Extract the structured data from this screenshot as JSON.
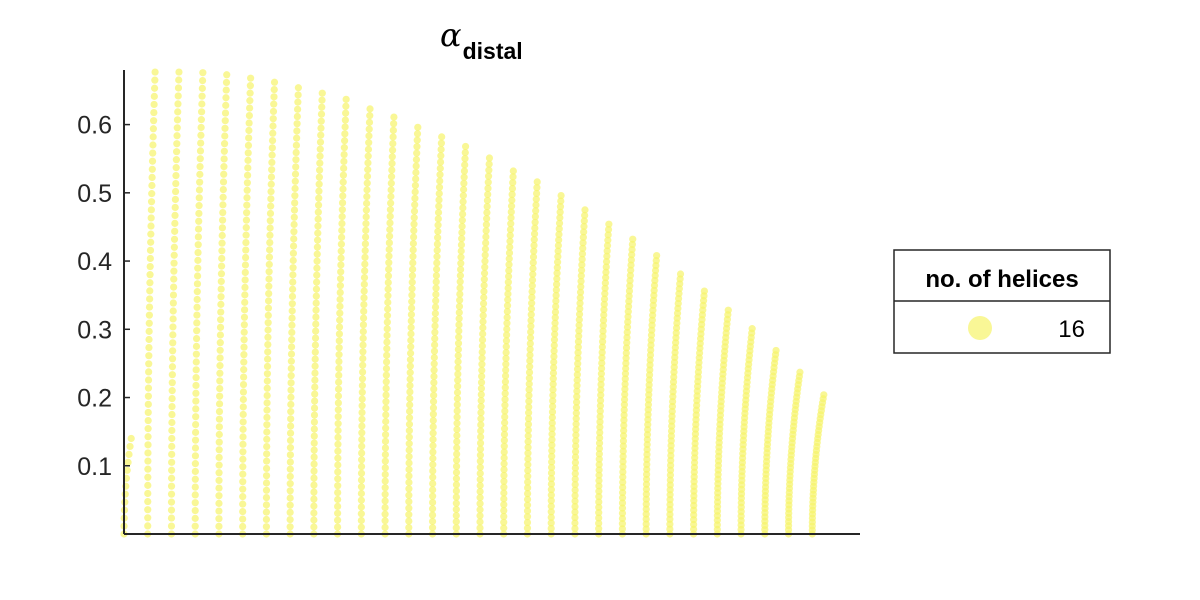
{
  "chart_data": {
    "type": "scatter",
    "title": "α",
    "title_subscript": "distal",
    "xlabel": "",
    "ylabel": "",
    "ylim": [
      0,
      0.68
    ],
    "xlim": [
      0,
      0.3
    ],
    "yticks": [
      "0.1",
      "0.2",
      "0.3",
      "0.4",
      "0.5",
      "0.6"
    ],
    "ytick_values": [
      0.1,
      0.2,
      0.3,
      0.4,
      0.5,
      0.6
    ],
    "grid": false,
    "x_axis_visible_ticks": false,
    "marker_color": "#f7f46a",
    "marker_opacity": 0.7,
    "legend": {
      "title": "no. of helices",
      "entries": [
        {
          "label": "16",
          "color": "#f7f46a"
        }
      ],
      "placement": "right"
    },
    "columns": [
      {
        "x": 0.0,
        "ymax": 0.14
      },
      {
        "x": 0.01,
        "ymax": 0.677
      },
      {
        "x": 0.02,
        "ymax": 0.677
      },
      {
        "x": 0.03,
        "ymax": 0.676
      },
      {
        "x": 0.04,
        "ymax": 0.673
      },
      {
        "x": 0.05,
        "ymax": 0.668
      },
      {
        "x": 0.06,
        "ymax": 0.662
      },
      {
        "x": 0.07,
        "ymax": 0.654
      },
      {
        "x": 0.08,
        "ymax": 0.646
      },
      {
        "x": 0.09,
        "ymax": 0.637
      },
      {
        "x": 0.1,
        "ymax": 0.623
      },
      {
        "x": 0.11,
        "ymax": 0.611
      },
      {
        "x": 0.12,
        "ymax": 0.596
      },
      {
        "x": 0.13,
        "ymax": 0.582
      },
      {
        "x": 0.14,
        "ymax": 0.568
      },
      {
        "x": 0.15,
        "ymax": 0.551
      },
      {
        "x": 0.16,
        "ymax": 0.532
      },
      {
        "x": 0.17,
        "ymax": 0.516
      },
      {
        "x": 0.18,
        "ymax": 0.496
      },
      {
        "x": 0.19,
        "ymax": 0.475
      },
      {
        "x": 0.2,
        "ymax": 0.454
      },
      {
        "x": 0.21,
        "ymax": 0.432
      },
      {
        "x": 0.22,
        "ymax": 0.408
      },
      {
        "x": 0.23,
        "ymax": 0.381
      },
      {
        "x": 0.24,
        "ymax": 0.356
      },
      {
        "x": 0.25,
        "ymax": 0.328
      },
      {
        "x": 0.26,
        "ymax": 0.301
      },
      {
        "x": 0.27,
        "ymax": 0.269
      },
      {
        "x": 0.28,
        "ymax": 0.237
      },
      {
        "x": 0.29,
        "ymax": 0.204
      }
    ]
  }
}
